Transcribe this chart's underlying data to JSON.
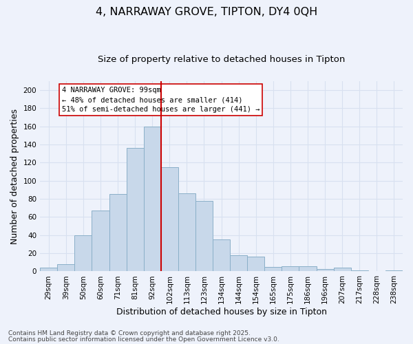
{
  "title": "4, NARRAWAY GROVE, TIPTON, DY4 0QH",
  "subtitle": "Size of property relative to detached houses in Tipton",
  "xlabel": "Distribution of detached houses by size in Tipton",
  "ylabel": "Number of detached properties",
  "bar_labels": [
    "29sqm",
    "39sqm",
    "50sqm",
    "60sqm",
    "71sqm",
    "81sqm",
    "92sqm",
    "102sqm",
    "113sqm",
    "123sqm",
    "134sqm",
    "144sqm",
    "154sqm",
    "165sqm",
    "175sqm",
    "186sqm",
    "196sqm",
    "207sqm",
    "217sqm",
    "228sqm",
    "238sqm"
  ],
  "bar_values": [
    4,
    8,
    40,
    67,
    85,
    136,
    160,
    115,
    86,
    78,
    35,
    18,
    16,
    5,
    6,
    6,
    3,
    4,
    1,
    0,
    1
  ],
  "bar_color": "#c8d8ea",
  "bar_edge_color": "#8aafc8",
  "vline_color": "#cc0000",
  "ylim": [
    0,
    210
  ],
  "yticks": [
    0,
    20,
    40,
    60,
    80,
    100,
    120,
    140,
    160,
    180,
    200
  ],
  "annotation_title": "4 NARRAWAY GROVE: 99sqm",
  "annotation_line1": "← 48% of detached houses are smaller (414)",
  "annotation_line2": "51% of semi-detached houses are larger (441) →",
  "annotation_box_color": "#ffffff",
  "annotation_box_edge": "#cc0000",
  "footer1": "Contains HM Land Registry data © Crown copyright and database right 2025.",
  "footer2": "Contains public sector information licensed under the Open Government Licence v3.0.",
  "background_color": "#eef2fb",
  "grid_color": "#d8e0f0",
  "title_fontsize": 11.5,
  "subtitle_fontsize": 9.5,
  "axis_label_fontsize": 9,
  "tick_fontsize": 7.5,
  "footer_fontsize": 6.5,
  "annotation_fontsize": 7.5
}
